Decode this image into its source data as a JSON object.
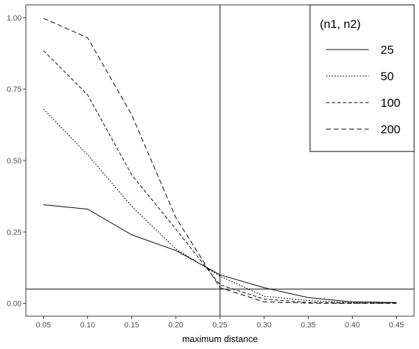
{
  "chart_data": {
    "type": "line",
    "xlabel": "maximum distance",
    "ylabel": "",
    "xlim": [
      0.03,
      0.47
    ],
    "ylim": [
      -0.045,
      1.045
    ],
    "x_ticks": [
      "0.05",
      "0.10",
      "0.15",
      "0.20",
      "0.25",
      "0.30",
      "0.35",
      "0.40",
      "0.45"
    ],
    "y_ticks": [
      "0.00",
      "0.25",
      "0.50",
      "0.75",
      "1.00"
    ],
    "x": [
      0.05,
      0.1,
      0.15,
      0.2,
      0.25,
      0.3,
      0.35,
      0.4,
      0.45
    ],
    "legend": {
      "title": "(n1, n2)",
      "position": "top-right"
    },
    "series": [
      {
        "name": "25",
        "linestyle": "solid",
        "values": [
          0.345,
          0.33,
          0.24,
          0.185,
          0.1,
          0.055,
          0.02,
          0.005,
          0.003
        ]
      },
      {
        "name": "50",
        "linestyle": "dotted",
        "values": [
          0.68,
          0.52,
          0.34,
          0.19,
          0.095,
          0.025,
          0.01,
          0.002,
          0.002
        ]
      },
      {
        "name": "100",
        "linestyle": "dashed",
        "values": [
          0.885,
          0.73,
          0.45,
          0.26,
          0.065,
          0.015,
          0.003,
          0.001,
          0.001
        ]
      },
      {
        "name": "200",
        "linestyle": "longdash",
        "values": [
          0.998,
          0.93,
          0.66,
          0.3,
          0.055,
          0.005,
          0.001,
          0.0,
          0.0
        ]
      }
    ],
    "reference_lines": {
      "vline_x": 0.25,
      "hline_y": 0.05
    },
    "grid": false
  }
}
